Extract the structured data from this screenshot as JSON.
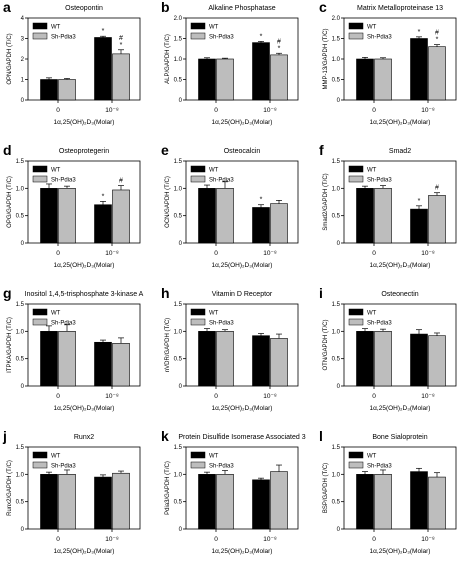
{
  "figure": {
    "x_group_labels": [
      "0",
      "10⁻⁸"
    ],
    "x_axis_title": "1α,25(OH)₂D₃(Molar)",
    "legend": [
      "WT",
      "Sh-Pdia3"
    ],
    "colors": {
      "wt": "#000000",
      "sh": "#bdbdbd"
    }
  },
  "chart_data": [
    {
      "type": "bar",
      "panel": "a",
      "title": "Osteopontin",
      "ylabel": "OPN/GAPDH (T/C)",
      "ylim": [
        0,
        4
      ],
      "yticks": [
        0,
        1,
        2,
        3,
        4
      ],
      "categories": [
        "0",
        "10⁻⁸"
      ],
      "series": [
        {
          "name": "WT",
          "values": [
            1.0,
            3.05
          ],
          "errors": [
            0.08,
            0.06
          ]
        },
        {
          "name": "Sh-Pdia3",
          "values": [
            1.0,
            2.25
          ],
          "errors": [
            0.05,
            0.2
          ]
        }
      ],
      "annotations": [
        {
          "category": "10⁻⁸",
          "series": "WT",
          "text": "*"
        },
        {
          "category": "10⁻⁸",
          "series": "Sh-Pdia3",
          "text": "#\n*"
        }
      ]
    },
    {
      "type": "bar",
      "panel": "b",
      "title": "Alkaline Phosphatase",
      "ylabel": "ALP/GAPDH (T/C)",
      "ylim": [
        0,
        2.0
      ],
      "yticks": [
        0,
        0.5,
        1.0,
        1.5,
        2.0
      ],
      "categories": [
        "0",
        "10⁻⁸"
      ],
      "series": [
        {
          "name": "WT",
          "values": [
            1.0,
            1.4
          ],
          "errors": [
            0.03,
            0.03
          ]
        },
        {
          "name": "Sh-Pdia3",
          "values": [
            1.0,
            1.1
          ],
          "errors": [
            0.02,
            0.04
          ]
        }
      ],
      "annotations": [
        {
          "category": "10⁻⁸",
          "series": "WT",
          "text": "*"
        },
        {
          "category": "10⁻⁸",
          "series": "Sh-Pdia3",
          "text": "#\n*"
        }
      ]
    },
    {
      "type": "bar",
      "panel": "c",
      "title": "Matrix Metalloproteinase 13",
      "ylabel": "MMP-13/GAPDH (T/C)",
      "ylim": [
        0,
        2.0
      ],
      "yticks": [
        0,
        0.5,
        1.0,
        1.5,
        2.0
      ],
      "categories": [
        "0",
        "10⁻⁸"
      ],
      "series": [
        {
          "name": "WT",
          "values": [
            1.0,
            1.5
          ],
          "errors": [
            0.04,
            0.04
          ]
        },
        {
          "name": "Sh-Pdia3",
          "values": [
            1.0,
            1.3
          ],
          "errors": [
            0.03,
            0.05
          ]
        }
      ],
      "annotations": [
        {
          "category": "10⁻⁸",
          "series": "WT",
          "text": "*"
        },
        {
          "category": "10⁻⁸",
          "series": "Sh-Pdia3",
          "text": "#\n*"
        }
      ]
    },
    {
      "type": "bar",
      "panel": "d",
      "title": "Osteoprotegerin",
      "ylabel": "OPG/GAPDH (T/C)",
      "ylim": [
        0,
        1.5
      ],
      "yticks": [
        0,
        0.5,
        1.0,
        1.5
      ],
      "categories": [
        "0",
        "10⁻⁸"
      ],
      "series": [
        {
          "name": "WT",
          "values": [
            1.0,
            0.7
          ],
          "errors": [
            0.08,
            0.06
          ]
        },
        {
          "name": "Sh-Pdia3",
          "values": [
            1.0,
            0.97
          ],
          "errors": [
            0.04,
            0.08
          ]
        }
      ],
      "annotations": [
        {
          "category": "10⁻⁸",
          "series": "WT",
          "text": "*"
        },
        {
          "category": "10⁻⁸",
          "series": "Sh-Pdia3",
          "text": "#"
        }
      ]
    },
    {
      "type": "bar",
      "panel": "e",
      "title": "Osteocalcin",
      "ylabel": "OCN/GAPDH (T/C)",
      "ylim": [
        0,
        1.5
      ],
      "yticks": [
        0,
        0.5,
        1.0,
        1.5
      ],
      "categories": [
        "0",
        "10⁻⁸"
      ],
      "series": [
        {
          "name": "WT",
          "values": [
            1.0,
            0.65
          ],
          "errors": [
            0.06,
            0.05
          ]
        },
        {
          "name": "Sh-Pdia3",
          "values": [
            1.0,
            0.72
          ],
          "errors": [
            0.12,
            0.06
          ]
        }
      ],
      "annotations": [
        {
          "category": "10⁻⁸",
          "series": "WT",
          "text": "*"
        }
      ]
    },
    {
      "type": "bar",
      "panel": "f",
      "title": "Smad2",
      "ylabel": "Smad2/GAPDH (T/C)",
      "ylim": [
        0,
        1.5
      ],
      "yticks": [
        0,
        0.5,
        1.0,
        1.5
      ],
      "categories": [
        "0",
        "10⁻⁸"
      ],
      "series": [
        {
          "name": "WT",
          "values": [
            1.0,
            0.62
          ],
          "errors": [
            0.04,
            0.06
          ]
        },
        {
          "name": "Sh-Pdia3",
          "values": [
            1.0,
            0.87
          ],
          "errors": [
            0.05,
            0.05
          ]
        }
      ],
      "annotations": [
        {
          "category": "10⁻⁸",
          "series": "WT",
          "text": "*"
        },
        {
          "category": "10⁻⁸",
          "series": "Sh-Pdia3",
          "text": "#"
        }
      ]
    },
    {
      "type": "bar",
      "panel": "g",
      "title": "Inositol 1,4,5-trisphosphate 3-kinase A",
      "ylabel": "ITPKA/GAPDH (T/C)",
      "ylim": [
        0,
        1.5
      ],
      "yticks": [
        0,
        0.5,
        1.0,
        1.5
      ],
      "categories": [
        "0",
        "10⁻⁸"
      ],
      "series": [
        {
          "name": "WT",
          "values": [
            1.0,
            0.8
          ],
          "errors": [
            0.1,
            0.04
          ]
        },
        {
          "name": "Sh-Pdia3",
          "values": [
            1.0,
            0.78
          ],
          "errors": [
            0.12,
            0.1
          ]
        }
      ]
    },
    {
      "type": "bar",
      "panel": "h",
      "title": "Vitamin D Receptor",
      "ylabel": "nVDR/GAPDH (T/C)",
      "ylim": [
        0,
        1.5
      ],
      "yticks": [
        0,
        0.5,
        1.0,
        1.5
      ],
      "categories": [
        "0",
        "10⁻⁸"
      ],
      "series": [
        {
          "name": "WT",
          "values": [
            1.0,
            0.92
          ],
          "errors": [
            0.05,
            0.04
          ]
        },
        {
          "name": "Sh-Pdia3",
          "values": [
            1.0,
            0.87
          ],
          "errors": [
            0.03,
            0.08
          ]
        }
      ]
    },
    {
      "type": "bar",
      "panel": "i",
      "title": "Osteonectin",
      "ylabel": "OTN/GAPDH (T/C)",
      "ylim": [
        0,
        1.5
      ],
      "yticks": [
        0,
        0.5,
        1.0,
        1.5
      ],
      "categories": [
        "0",
        "10⁻⁸"
      ],
      "series": [
        {
          "name": "WT",
          "values": [
            1.0,
            0.95
          ],
          "errors": [
            0.05,
            0.08
          ]
        },
        {
          "name": "Sh-Pdia3",
          "values": [
            1.0,
            0.92
          ],
          "errors": [
            0.04,
            0.05
          ]
        }
      ]
    },
    {
      "type": "bar",
      "panel": "j",
      "title": "Runx2",
      "ylabel": "Runx2/GAPDH (T/C)",
      "ylim": [
        0,
        1.5
      ],
      "yticks": [
        0,
        0.5,
        1.0,
        1.5
      ],
      "categories": [
        "0",
        "10⁻⁸"
      ],
      "series": [
        {
          "name": "WT",
          "values": [
            1.0,
            0.95
          ],
          "errors": [
            0.04,
            0.04
          ]
        },
        {
          "name": "Sh-Pdia3",
          "values": [
            1.0,
            1.02
          ],
          "errors": [
            0.08,
            0.04
          ]
        }
      ]
    },
    {
      "type": "bar",
      "panel": "k",
      "title": "Protein Disulfide Isomerase Associated 3",
      "ylabel": "Pdia3/GAPDH (T/C)",
      "ylim": [
        0,
        1.5
      ],
      "yticks": [
        0,
        0.5,
        1.0,
        1.5
      ],
      "categories": [
        "0",
        "10⁻⁸"
      ],
      "series": [
        {
          "name": "WT",
          "values": [
            1.0,
            0.9
          ],
          "errors": [
            0.04,
            0.03
          ]
        },
        {
          "name": "Sh-Pdia3",
          "values": [
            1.0,
            1.05
          ],
          "errors": [
            0.07,
            0.12
          ]
        }
      ]
    },
    {
      "type": "bar",
      "panel": "l",
      "title": "Bone Sialoprotein",
      "ylabel": "BSP/GAPDH (T/C)",
      "ylim": [
        0,
        1.5
      ],
      "yticks": [
        0,
        0.5,
        1.0,
        1.5
      ],
      "categories": [
        "0",
        "10⁻⁸"
      ],
      "series": [
        {
          "name": "WT",
          "values": [
            1.0,
            1.05
          ],
          "errors": [
            0.05,
            0.06
          ]
        },
        {
          "name": "Sh-Pdia3",
          "values": [
            1.0,
            0.95
          ],
          "errors": [
            0.08,
            0.08
          ]
        }
      ]
    }
  ]
}
